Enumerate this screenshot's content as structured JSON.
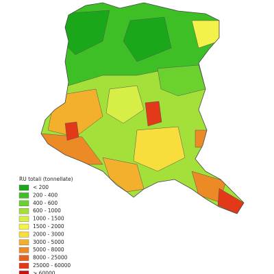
{
  "legend": {
    "title": "RU totali (tonnellate)",
    "items": [
      {
        "label": "< 200",
        "color": "#1aa81a"
      },
      {
        "label": "200 - 400",
        "color": "#3fbf26"
      },
      {
        "label": "400 - 600",
        "color": "#6ad12e"
      },
      {
        "label": "600 - 1000",
        "color": "#a3e03a"
      },
      {
        "label": "1000 - 1500",
        "color": "#d6ee45"
      },
      {
        "label": "1500 - 2000",
        "color": "#f3f24a"
      },
      {
        "label": "2000 - 3000",
        "color": "#f8de3c"
      },
      {
        "label": "3000 - 5000",
        "color": "#f2b02d"
      },
      {
        "label": "5000 - 8000",
        "color": "#ec8a26"
      },
      {
        "label": "8000 - 25000",
        "color": "#e8601f"
      },
      {
        "label": "25000 - 60000",
        "color": "#e23a18"
      },
      {
        "label": "> 60000",
        "color": "#c8120e"
      }
    ]
  }
}
